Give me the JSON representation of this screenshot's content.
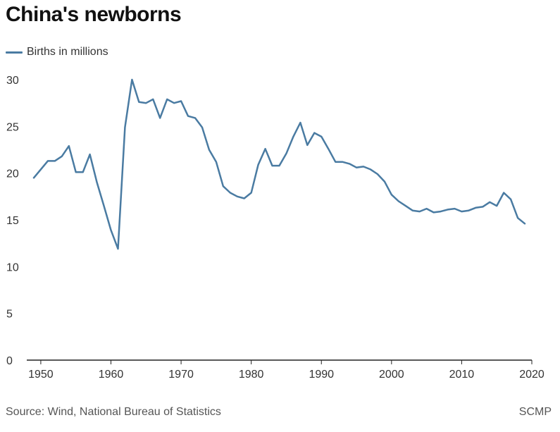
{
  "chart_data": {
    "type": "line",
    "title": "China's newborns",
    "xlabel": "",
    "ylabel": "",
    "xlim": [
      1948,
      2020
    ],
    "ylim": [
      0,
      30
    ],
    "xticks": [
      1950,
      1960,
      1970,
      1980,
      1990,
      2000,
      2010,
      2020
    ],
    "yticks": [
      0,
      5,
      10,
      15,
      20,
      25,
      30
    ],
    "grid": false,
    "legend": "top-left",
    "series": [
      {
        "name": "Births in millions",
        "color": "#4a7ba2",
        "x": [
          1949,
          1950,
          1951,
          1952,
          1953,
          1954,
          1955,
          1956,
          1957,
          1958,
          1959,
          1960,
          1961,
          1962,
          1963,
          1964,
          1965,
          1966,
          1967,
          1968,
          1969,
          1970,
          1971,
          1972,
          1973,
          1974,
          1975,
          1976,
          1977,
          1978,
          1979,
          1980,
          1981,
          1982,
          1983,
          1984,
          1985,
          1986,
          1987,
          1988,
          1989,
          1990,
          1991,
          1992,
          1993,
          1994,
          1995,
          1996,
          1997,
          1998,
          1999,
          2000,
          2001,
          2002,
          2003,
          2004,
          2005,
          2006,
          2007,
          2008,
          2009,
          2010,
          2011,
          2012,
          2013,
          2014,
          2015,
          2016,
          2017,
          2018,
          2019
        ],
        "y": [
          19.5,
          20.4,
          21.3,
          21.3,
          21.8,
          22.9,
          20.1,
          20.1,
          22.0,
          19.0,
          16.5,
          13.9,
          11.9,
          24.9,
          30.0,
          27.6,
          27.5,
          27.9,
          25.9,
          27.9,
          27.5,
          27.7,
          26.1,
          25.9,
          24.9,
          22.5,
          21.2,
          18.6,
          17.9,
          17.5,
          17.3,
          17.9,
          20.9,
          22.6,
          20.8,
          20.8,
          22.1,
          23.9,
          25.4,
          23.0,
          24.3,
          23.9,
          22.6,
          21.2,
          21.2,
          21.0,
          20.6,
          20.7,
          20.4,
          19.9,
          19.1,
          17.7,
          17.0,
          16.5,
          16.0,
          15.9,
          16.2,
          15.8,
          15.9,
          16.1,
          16.2,
          15.9,
          16.0,
          16.3,
          16.4,
          16.9,
          16.5,
          17.9,
          17.2,
          15.2,
          14.6
        ]
      }
    ]
  },
  "footer": {
    "source": "Source: Wind, National Bureau of Statistics",
    "credit": "SCMP"
  }
}
